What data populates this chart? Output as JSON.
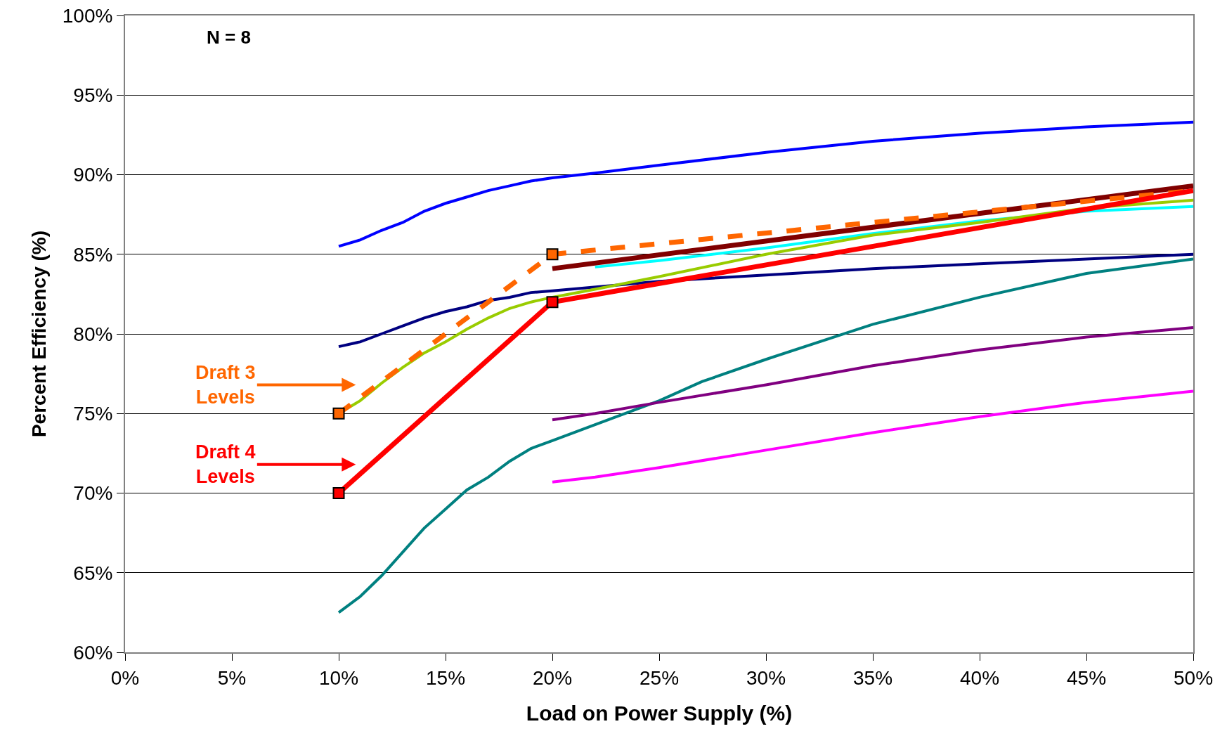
{
  "chart_data": {
    "type": "line",
    "xlabel": "Load on Power Supply (%)",
    "ylabel": "Percent Efficiency (%)",
    "xlim": [
      0,
      50
    ],
    "ylim": [
      60,
      100
    ],
    "xticks": [
      {
        "value": 0,
        "label": "0%"
      },
      {
        "value": 5,
        "label": "5%"
      },
      {
        "value": 10,
        "label": "10%"
      },
      {
        "value": 15,
        "label": "15%"
      },
      {
        "value": 20,
        "label": "20%"
      },
      {
        "value": 25,
        "label": "25%"
      },
      {
        "value": 30,
        "label": "30%"
      },
      {
        "value": 35,
        "label": "35%"
      },
      {
        "value": 40,
        "label": "40%"
      },
      {
        "value": 45,
        "label": "45%"
      },
      {
        "value": 50,
        "label": "50%"
      }
    ],
    "yticks": [
      {
        "value": 60,
        "label": "60%"
      },
      {
        "value": 65,
        "label": "65%"
      },
      {
        "value": 70,
        "label": "70%"
      },
      {
        "value": 75,
        "label": "75%"
      },
      {
        "value": 80,
        "label": "80%"
      },
      {
        "value": 85,
        "label": "85%"
      },
      {
        "value": 90,
        "label": "90%"
      },
      {
        "value": 95,
        "label": "95%"
      },
      {
        "value": 100,
        "label": "100%"
      }
    ],
    "grid": "y",
    "marker": "none",
    "series": [
      {
        "color": "#0000ff",
        "x": [
          10,
          11,
          12,
          13,
          14,
          15,
          16,
          17,
          18,
          19,
          20,
          22,
          25,
          30,
          35,
          40,
          45,
          50
        ],
        "values": [
          85.5,
          85.9,
          86.5,
          87.0,
          87.7,
          88.2,
          88.6,
          89.0,
          89.3,
          89.6,
          89.8,
          90.1,
          90.6,
          91.4,
          92.1,
          92.6,
          93.0,
          93.3
        ]
      },
      {
        "color": "#000080",
        "x": [
          10,
          11,
          12,
          13,
          14,
          15,
          16,
          17,
          18,
          19,
          20,
          25,
          30,
          35,
          40,
          45,
          50
        ],
        "values": [
          79.2,
          79.5,
          80.0,
          80.5,
          81.0,
          81.4,
          81.7,
          82.1,
          82.3,
          82.6,
          82.7,
          83.3,
          83.7,
          84.1,
          84.4,
          84.7,
          85.0
        ]
      },
      {
        "color": "#008080",
        "x": [
          10,
          11,
          12,
          13,
          14,
          15,
          16,
          17,
          18,
          19,
          20,
          22,
          25,
          27,
          30,
          35,
          40,
          45,
          50
        ],
        "values": [
          62.5,
          63.5,
          64.8,
          66.3,
          67.8,
          69.0,
          70.2,
          71.0,
          72.0,
          72.8,
          73.3,
          74.3,
          75.8,
          77.0,
          78.4,
          80.6,
          82.3,
          83.8,
          84.7
        ]
      },
      {
        "color": "#800080",
        "x": [
          20,
          22,
          25,
          30,
          35,
          40,
          45,
          50
        ],
        "values": [
          74.6,
          75.0,
          75.7,
          76.8,
          78.0,
          79.0,
          79.8,
          80.4
        ]
      },
      {
        "color": "#ff00ff",
        "x": [
          20,
          22,
          25,
          30,
          35,
          40,
          45,
          50
        ],
        "values": [
          70.7,
          71.0,
          71.6,
          72.7,
          73.8,
          74.8,
          75.7,
          76.4
        ]
      },
      {
        "color": "#00ffff",
        "x": [
          22,
          25,
          30,
          35,
          40,
          45,
          50
        ],
        "values": [
          84.2,
          84.6,
          85.4,
          86.3,
          87.1,
          87.7,
          88.0
        ]
      },
      {
        "color": "#99cc00",
        "x": [
          10,
          11,
          12,
          13,
          14,
          15,
          16,
          17,
          18,
          19,
          20,
          22,
          25,
          30,
          35,
          40,
          45,
          50
        ],
        "values": [
          75.0,
          75.8,
          76.9,
          77.9,
          78.8,
          79.5,
          80.3,
          81.0,
          81.6,
          82.0,
          82.3,
          82.8,
          83.6,
          85.0,
          86.2,
          87.0,
          87.9,
          88.4
        ]
      },
      {
        "color": "#800000",
        "x": [
          20,
          50
        ],
        "values": [
          84.1,
          89.3
        ]
      },
      {
        "color": "#ff6600",
        "line_style": "dashed",
        "x": [
          10,
          20,
          50
        ],
        "values": [
          75,
          85,
          89.0
        ]
      },
      {
        "color": "#ff0000",
        "x": [
          10,
          20,
          50
        ],
        "values": [
          70,
          82,
          89.0
        ]
      },
      {
        "type": "scatter",
        "marker": "square",
        "color": "#ff6600",
        "x": [
          10,
          20
        ],
        "values": [
          75,
          85
        ]
      },
      {
        "type": "scatter",
        "marker": "square",
        "color": "#ff0000",
        "x": [
          10,
          20
        ],
        "values": [
          70,
          82
        ]
      }
    ],
    "annotations": [
      "N = 8",
      "Draft 3\nLevels",
      "Draft 4\nLevels"
    ]
  }
}
